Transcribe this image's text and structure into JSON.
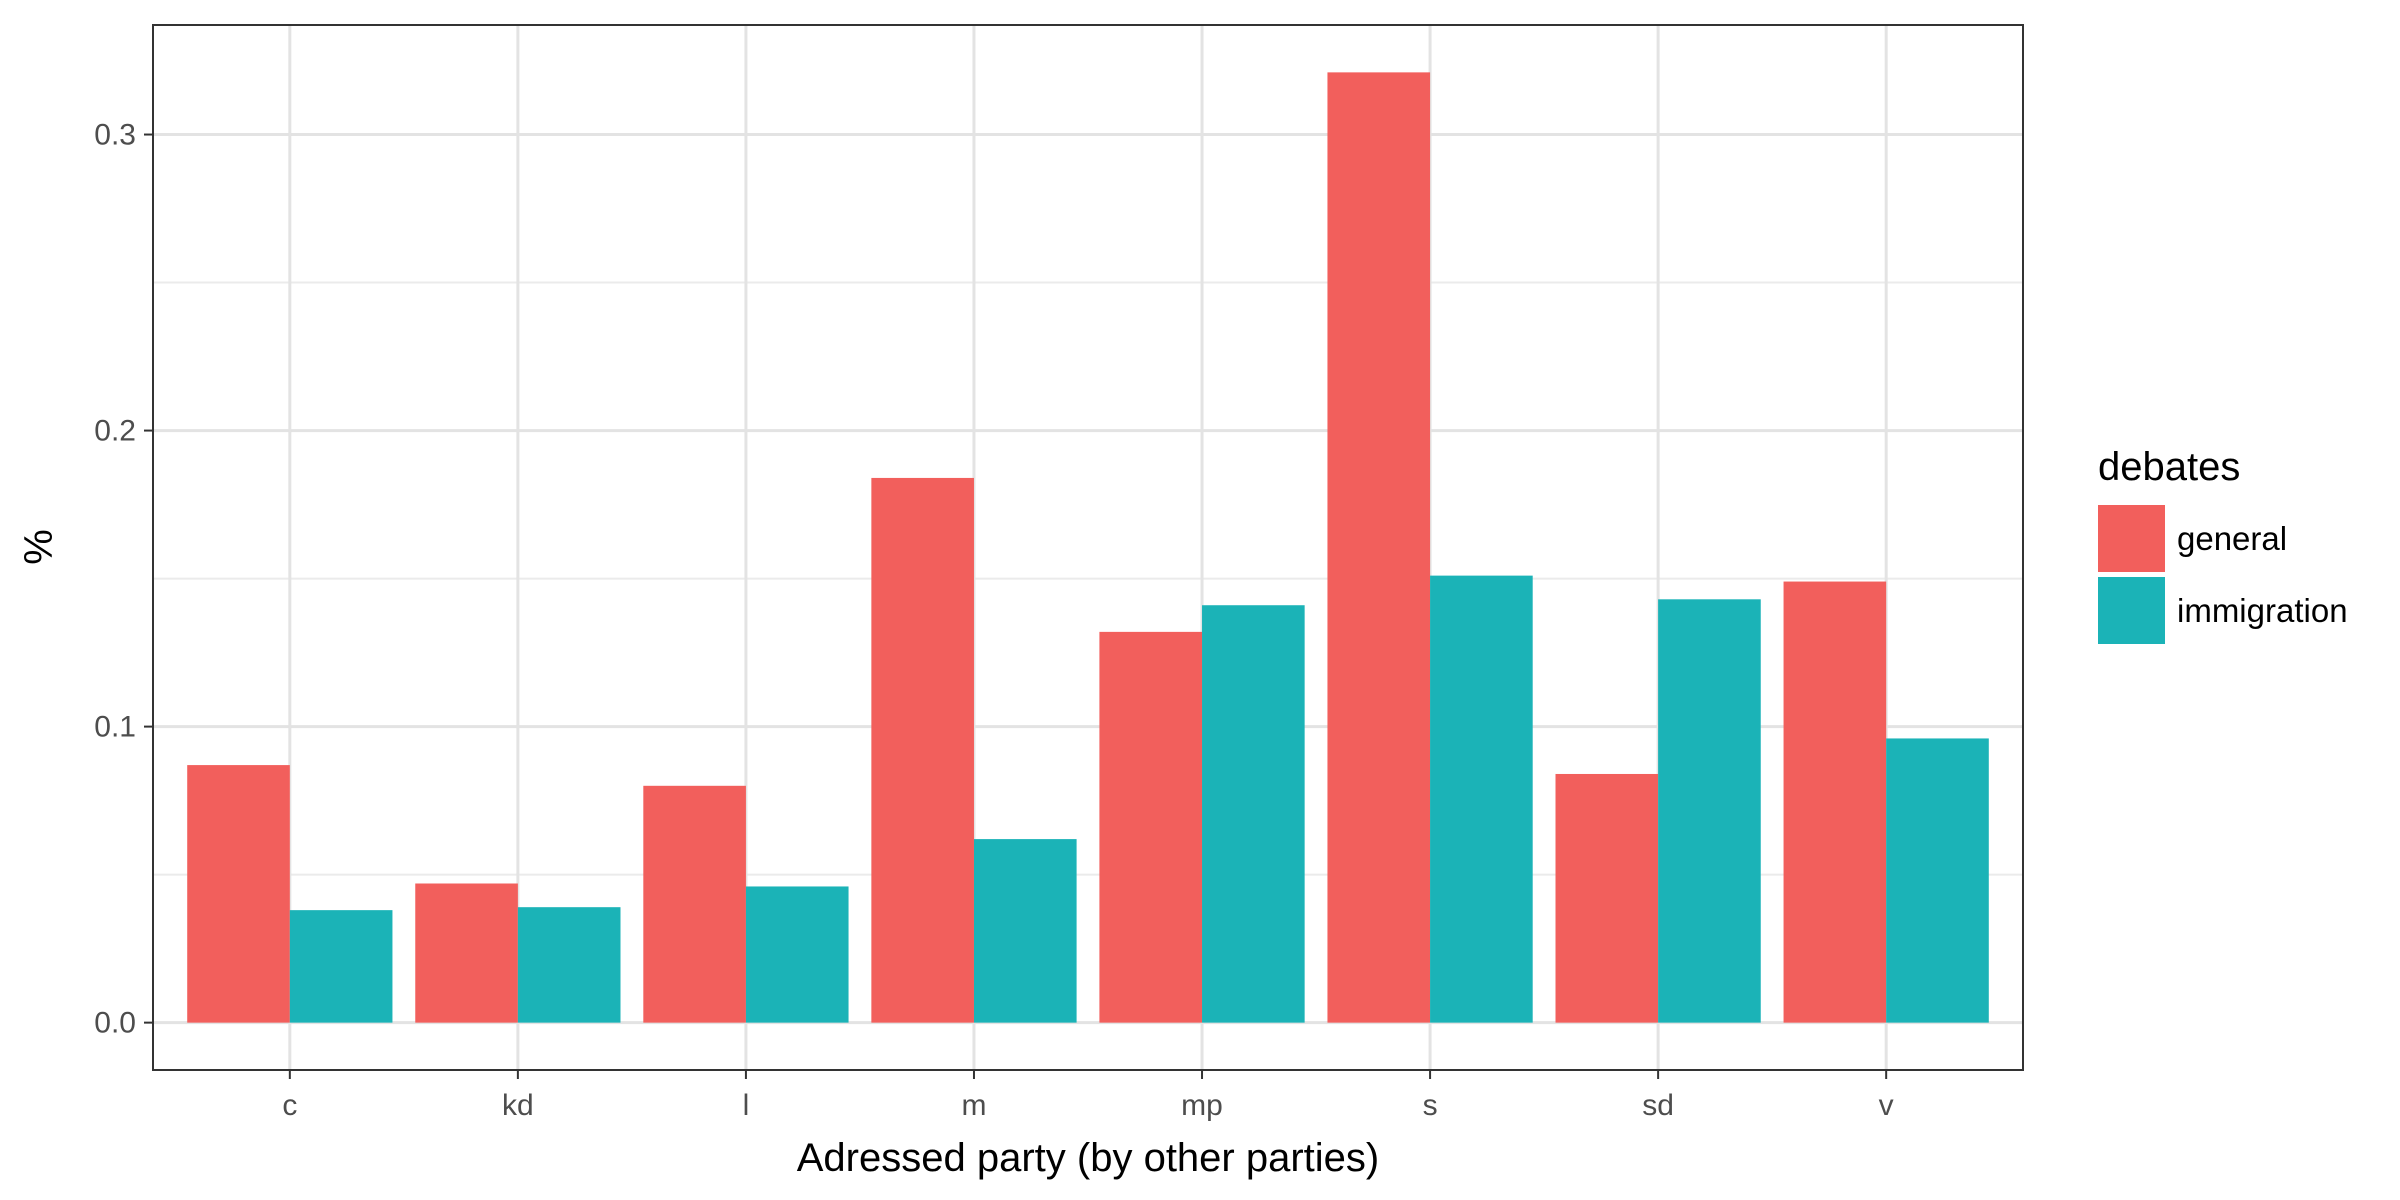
{
  "chart_data": {
    "type": "bar",
    "title": "",
    "xlabel": "Adressed party (by other parties)",
    "ylabel": "%",
    "categories": [
      "c",
      "kd",
      "l",
      "m",
      "mp",
      "s",
      "sd",
      "v"
    ],
    "series": [
      {
        "name": "general",
        "color": "#F25F5C",
        "values": [
          0.087,
          0.047,
          0.08,
          0.184,
          0.132,
          0.321,
          0.084,
          0.149
        ]
      },
      {
        "name": "immigration",
        "color": "#1BB3B7",
        "values": [
          0.038,
          0.039,
          0.046,
          0.062,
          0.141,
          0.151,
          0.143,
          0.096
        ]
      }
    ],
    "ylim": [
      -0.016,
      0.337
    ],
    "yticks": [
      0.0,
      0.1,
      0.2,
      0.3
    ],
    "ytick_labels": [
      "0.0",
      "0.1",
      "0.2",
      "0.3"
    ],
    "grid": true,
    "legend": {
      "title": "debates",
      "placement": "right"
    }
  }
}
